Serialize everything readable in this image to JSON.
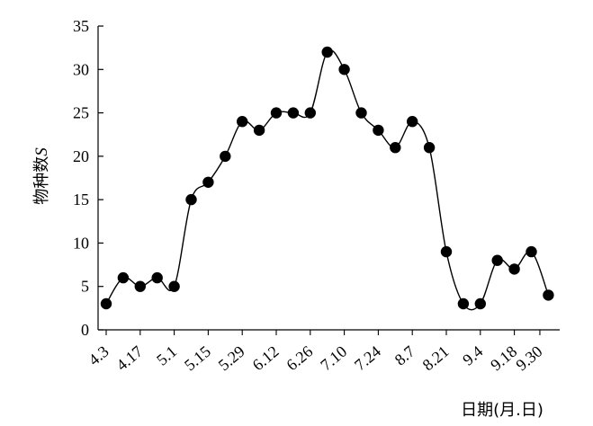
{
  "chart_data": {
    "type": "line",
    "xlabel": "日期(月.日)",
    "ylabel": "物种数",
    "ylabel_symbol": "S",
    "ylim": [
      0,
      35
    ],
    "yticks": [
      0,
      5,
      10,
      15,
      20,
      25,
      30,
      35
    ],
    "grid": false,
    "marker": "filled-circle",
    "line_style": "smooth",
    "x_tick_labels": [
      "4.3",
      "4.17",
      "5.1",
      "5.15",
      "5.29",
      "6.12",
      "6.26",
      "7.10",
      "7.24",
      "8.7",
      "8.21",
      "9.4",
      "9.18",
      "9.30"
    ],
    "series": [
      {
        "values": [
          3,
          6,
          5,
          6,
          5,
          15,
          17,
          20,
          24,
          23,
          25,
          25,
          25,
          32,
          30,
          25,
          23,
          21,
          24,
          21,
          9,
          3,
          3,
          8,
          7,
          9,
          4
        ]
      }
    ]
  }
}
